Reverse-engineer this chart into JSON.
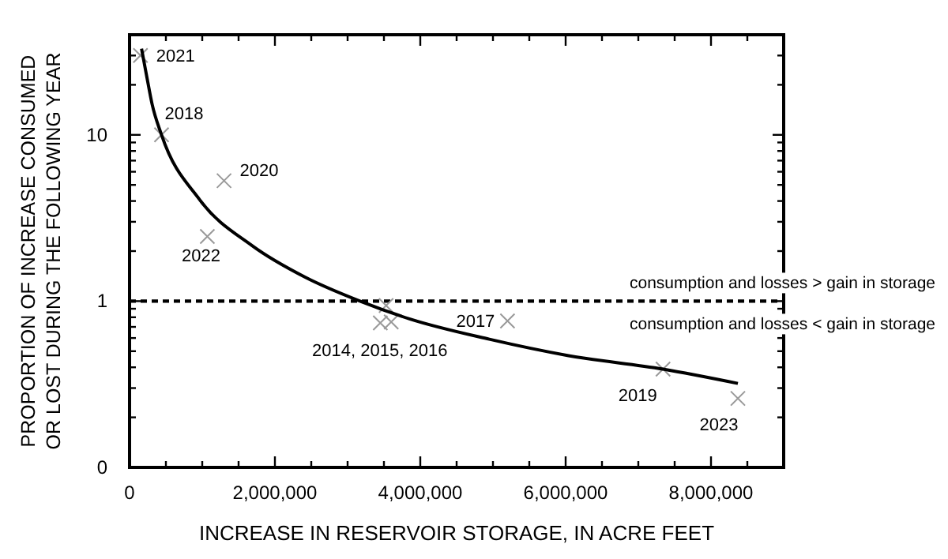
{
  "chart_data": {
    "type": "scatter",
    "xlabel": "INCREASE IN RESERVOIR STORAGE, IN ACRE FEET",
    "ylabel": "PROPORTION OF INCREASE CONSUMED OR LOST DURING THE FOLLOWING YEAR",
    "log": "y",
    "xlim": [
      0,
      9000000
    ],
    "ylim": [
      0.1,
      40
    ],
    "xticks": [
      {
        "value": 0,
        "label": "0"
      },
      {
        "value": 500000,
        "label": null
      },
      {
        "value": 1000000,
        "label": null
      },
      {
        "value": 1500000,
        "label": null
      },
      {
        "value": 2000000,
        "label": "2,000,000"
      },
      {
        "value": 2500000,
        "label": null
      },
      {
        "value": 3000000,
        "label": null
      },
      {
        "value": 3500000,
        "label": null
      },
      {
        "value": 4000000,
        "label": "4,000,000"
      },
      {
        "value": 4500000,
        "label": null
      },
      {
        "value": 5000000,
        "label": null
      },
      {
        "value": 5500000,
        "label": null
      },
      {
        "value": 6000000,
        "label": "6,000,000"
      },
      {
        "value": 6500000,
        "label": null
      },
      {
        "value": 7000000,
        "label": null
      },
      {
        "value": 7500000,
        "label": null
      },
      {
        "value": 8000000,
        "label": "8,000,000"
      },
      {
        "value": 8500000,
        "label": null
      },
      {
        "value": 9000000,
        "label": null
      }
    ],
    "yticks": [
      {
        "value": 0.1,
        "label": "0"
      },
      {
        "value": 0.2,
        "label": null
      },
      {
        "value": 0.3,
        "label": null
      },
      {
        "value": 0.4,
        "label": null
      },
      {
        "value": 0.5,
        "label": null
      },
      {
        "value": 0.6,
        "label": null
      },
      {
        "value": 0.7,
        "label": null
      },
      {
        "value": 0.8,
        "label": null
      },
      {
        "value": 0.9,
        "label": null
      },
      1,
      {
        "value": 2,
        "label": null
      },
      {
        "value": 3,
        "label": null
      },
      {
        "value": 4,
        "label": null
      },
      {
        "value": 5,
        "label": null
      },
      {
        "value": 6,
        "label": null
      },
      {
        "value": 7,
        "label": null
      },
      {
        "value": 8,
        "label": null
      },
      {
        "value": 9,
        "label": null
      },
      10,
      {
        "value": 20,
        "label": null
      },
      {
        "value": 30,
        "label": null
      }
    ],
    "grid": false,
    "series": [
      {
        "color": "#999999",
        "marker": "cross",
        "x": [
          150000,
          440000,
          1300000,
          1070000,
          3450000,
          3600000,
          3530000,
          5200000,
          7340000,
          8370000
        ],
        "values": [
          30,
          10,
          5.3,
          2.45,
          0.74,
          0.75,
          0.94,
          0.76,
          0.39,
          0.26
        ]
      },
      {
        "type": "line",
        "color": "#000000",
        "line_style": "solid",
        "x": [
          165000,
          240000,
          310000,
          440000,
          960000,
          1690000,
          2420000,
          3170000,
          3860000,
          4950000,
          6040000,
          7340000,
          8370000
        ],
        "values": [
          33,
          22,
          15.3,
          10,
          4.1,
          2.15,
          1.39,
          1.0,
          0.78,
          0.59,
          0.47,
          0.39,
          0.32
        ]
      }
    ],
    "ref_lines": [
      {
        "axis": "y",
        "value": 1,
        "label": null,
        "color": "#000000",
        "line_style": "dashed"
      }
    ],
    "annotations": [
      {
        "text": "2021",
        "x": 150000,
        "y": 30
      },
      {
        "text": "2018",
        "x": 440000,
        "y": 10
      },
      {
        "text": "2020",
        "x": 1300000,
        "y": 5.3
      },
      {
        "text": "2022",
        "x": 1070000,
        "y": 2.45
      },
      {
        "text": "2014, 2015, 2016",
        "x": 3530000,
        "y": 0.74
      },
      {
        "text": "2017",
        "x": 5200000,
        "y": 0.76
      },
      {
        "text": "2019",
        "x": 7340000,
        "y": 0.39
      },
      {
        "text": "2023",
        "x": 8370000,
        "y": 0.26
      },
      "consumption and losses > gain in storage",
      "consumption and losses < gain in storage"
    ]
  }
}
